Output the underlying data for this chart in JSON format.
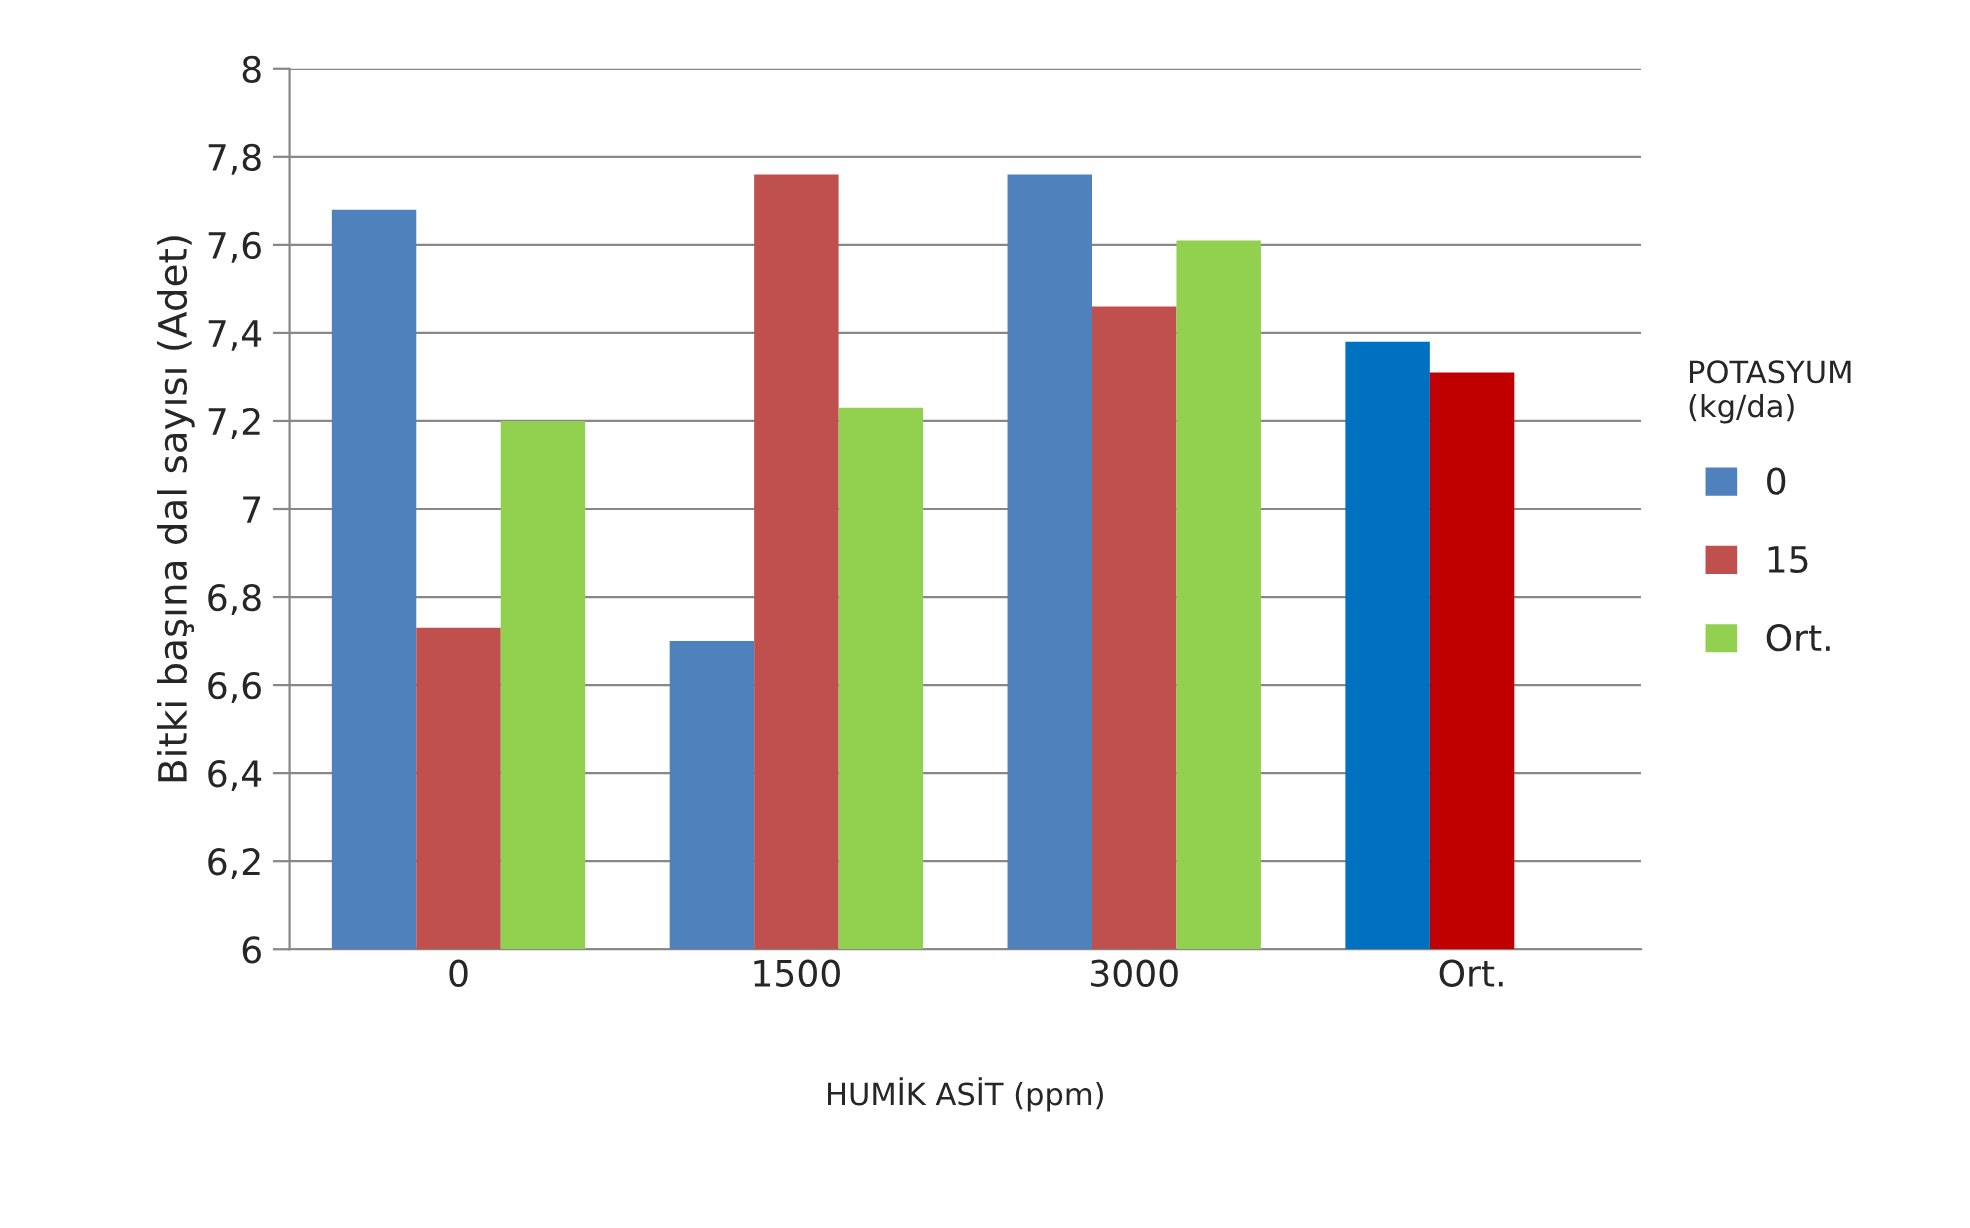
{
  "chart_data": {
    "type": "bar",
    "xlabel": "HUMİK ASİT (ppm)",
    "ylabel": "Bitki başına dal sayısı (Adet)",
    "legend_title": "POTASYUM\n(kg/da)",
    "categories": [
      "0",
      "1500",
      "3000",
      "Ort."
    ],
    "series": [
      {
        "name": "0",
        "color": "#4f81bd",
        "colors": [
          "#4f81bd",
          "#4f81bd",
          "#4f81bd",
          "#0070c0"
        ],
        "values": [
          7.68,
          6.7,
          7.76,
          7.38
        ]
      },
      {
        "name": "15",
        "color": "#c0504d",
        "colors": [
          "#c0504d",
          "#c0504d",
          "#c0504d",
          "#c00000"
        ],
        "values": [
          6.73,
          7.76,
          7.46,
          7.31
        ]
      },
      {
        "name": "Ort.",
        "color": "#92d050",
        "values": [
          7.2,
          7.23,
          7.61,
          null
        ]
      }
    ],
    "ylim": [
      6,
      8
    ],
    "yticks": [
      6,
      {
        "value": 6.2,
        "label": "6,2"
      },
      {
        "value": 6.4,
        "label": "6,4"
      },
      {
        "value": 6.6,
        "label": "6,6"
      },
      {
        "value": 6.8,
        "label": "6,8"
      },
      7,
      {
        "value": 7.2,
        "label": "7,2"
      },
      {
        "value": 7.4,
        "label": "7,4"
      },
      {
        "value": 7.6,
        "label": "7,6"
      },
      {
        "value": 7.8,
        "label": "7,8"
      },
      8
    ],
    "grid": "y",
    "legend": "right"
  }
}
